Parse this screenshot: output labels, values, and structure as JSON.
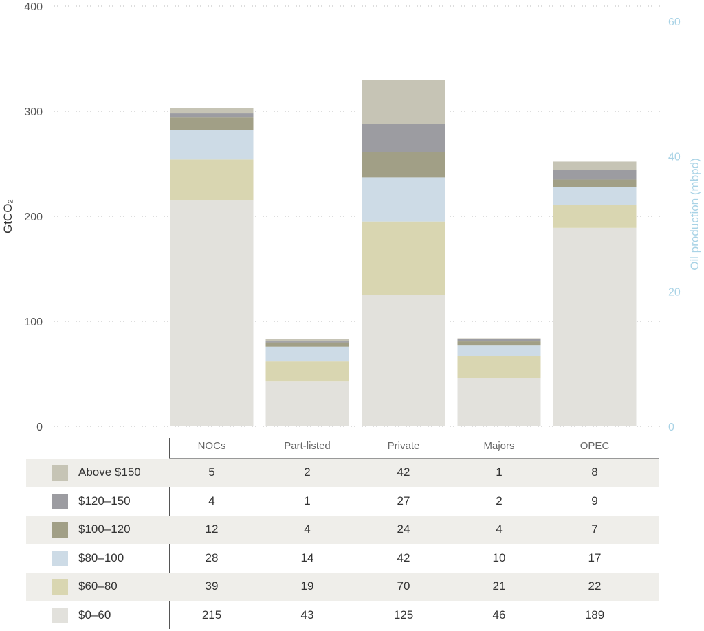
{
  "chart_data": {
    "type": "bar",
    "stacked": true,
    "categories": [
      "NOCs",
      "Part-listed",
      "Private",
      "Majors",
      "OPEC"
    ],
    "series": [
      {
        "name": "$0–60",
        "color": "#e2e1dc",
        "values": [
          215,
          43,
          125,
          46,
          189
        ]
      },
      {
        "name": "$60–80",
        "color": "#d9d6b1",
        "values": [
          39,
          19,
          70,
          21,
          22
        ]
      },
      {
        "name": "$80–100",
        "color": "#cddbe6",
        "values": [
          28,
          14,
          42,
          10,
          17
        ]
      },
      {
        "name": "$100–120",
        "color": "#a19f86",
        "values": [
          12,
          4,
          24,
          4,
          7
        ]
      },
      {
        "name": "$120–150",
        "color": "#9c9ca1",
        "values": [
          4,
          1,
          27,
          2,
          9
        ]
      },
      {
        "name": "Above $150",
        "color": "#c6c4b5",
        "values": [
          5,
          2,
          42,
          1,
          8
        ]
      }
    ],
    "ylabel": "GtCO₂",
    "ylim": [
      0,
      400
    ],
    "yticks": [
      0,
      100,
      200,
      300,
      400
    ],
    "y2label": "Oil production (mbpd)",
    "y2lim": [
      0,
      60
    ],
    "y2ticks": [
      0,
      20,
      40,
      60
    ],
    "grid": true,
    "legend": "table-below"
  },
  "table": {
    "columns": [
      "NOCs",
      "Part-listed",
      "Private",
      "Majors",
      "OPEC"
    ],
    "rows": [
      {
        "label": "Above $150",
        "values": [
          "5",
          "2",
          "42",
          "1",
          "8"
        ]
      },
      {
        "label": "$120–150",
        "values": [
          "4",
          "1",
          "27",
          "2",
          "9"
        ]
      },
      {
        "label": "$100–120",
        "values": [
          "12",
          "4",
          "24",
          "4",
          "7"
        ]
      },
      {
        "label": "$80–100",
        "values": [
          "28",
          "14",
          "42",
          "10",
          "17"
        ]
      },
      {
        "label": "$60–80",
        "values": [
          "39",
          "19",
          "70",
          "21",
          "22"
        ]
      },
      {
        "label": "$0–60",
        "values": [
          "215",
          "43",
          "125",
          "46",
          "189"
        ]
      }
    ]
  }
}
